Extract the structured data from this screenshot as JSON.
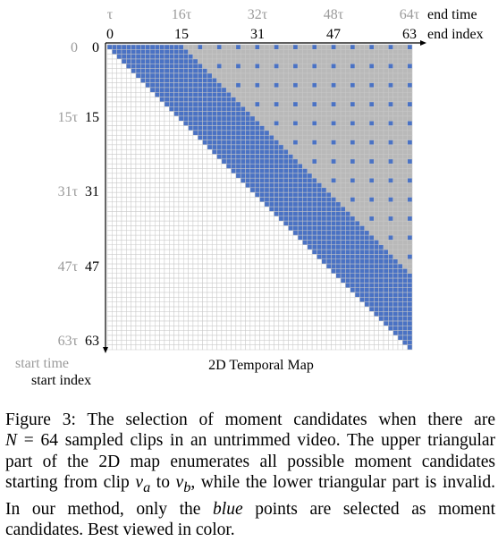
{
  "figure": {
    "caption": {
      "label": "Figure 3:",
      "part1": "The selection of moment candidates when there are",
      "math_n": "N",
      "math_eq": "= 64",
      "part2": "sampled clips in an untrimmed video. The upper triangular part of the 2D map enumerates all possible moment candidates starting from clip",
      "va": "v",
      "va_sub": "a",
      "to": "to",
      "vb": "v",
      "vb_sub": "b",
      "part3": ", while the lower triangular part is invalid. In our method, only the",
      "blue_word": "blue",
      "part4": "points are selected as moment candidates. Best viewed in color."
    },
    "map": {
      "title": "2D Temporal Map",
      "end_time_label": "end time",
      "end_index_label": "end index",
      "start_time_label": "start time",
      "start_index_label": "start index",
      "time_ticks": [
        "τ",
        "16τ",
        "32τ",
        "48τ",
        "64τ"
      ],
      "index_ticks": [
        "0",
        "15",
        "31",
        "47",
        "63"
      ],
      "start_time_ticks": [
        "0",
        "15τ",
        "31τ",
        "47τ",
        "63τ"
      ],
      "start_index_ticks": [
        "0",
        "15",
        "31",
        "47",
        "63"
      ],
      "n": 64,
      "dense_band": 16,
      "sparse_stride": 4
    },
    "colors": {
      "selected": "#4a72c4",
      "unselected": "#b9b9b9",
      "grid": "#c8c8c8",
      "gray_text": "#9a9a9a"
    }
  }
}
